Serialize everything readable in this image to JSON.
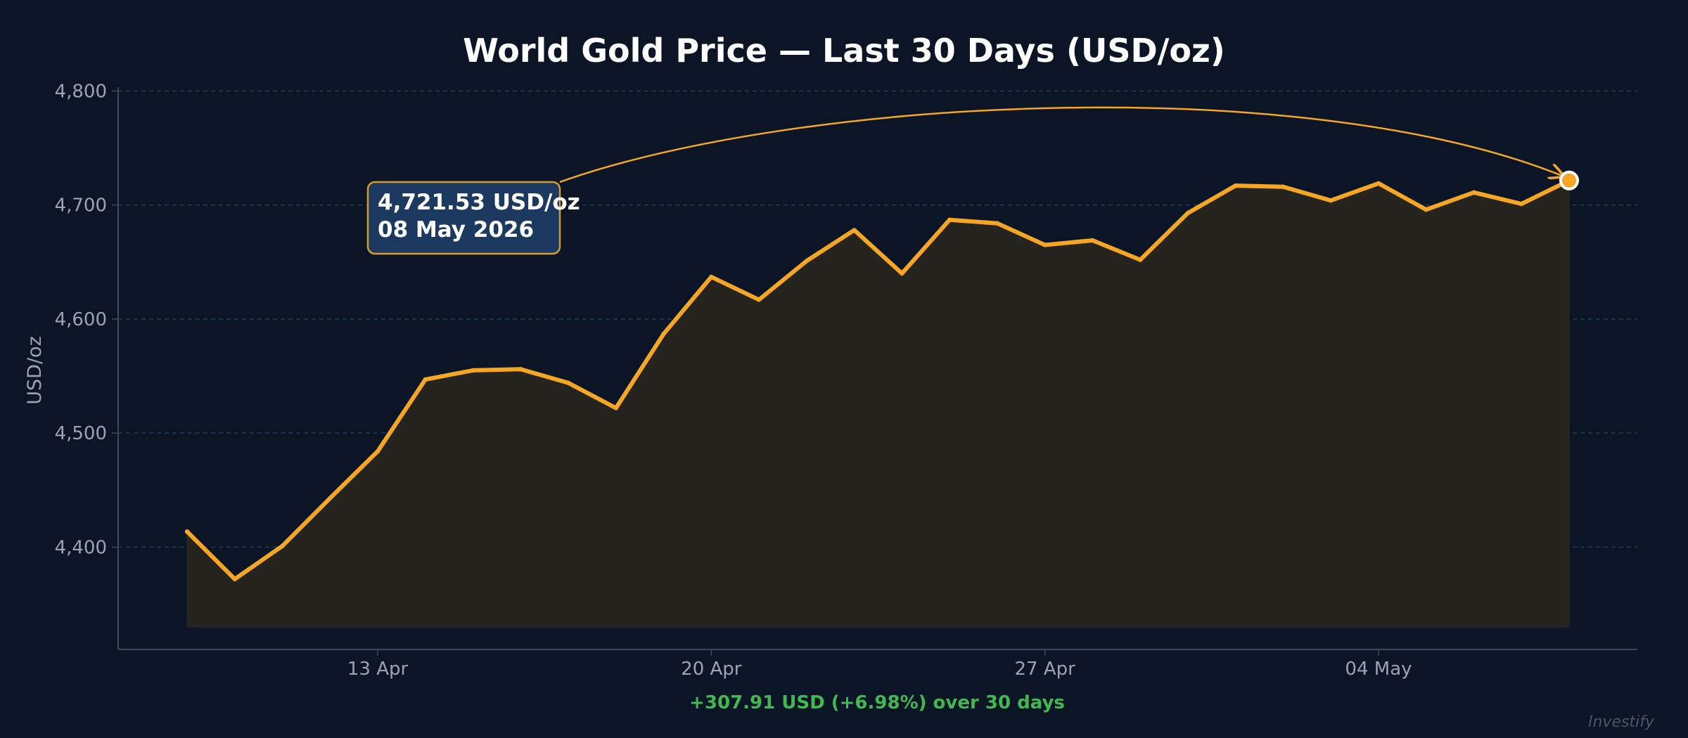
{
  "chart_data": {
    "type": "line",
    "title": "World Gold Price — Last 30 Days (USD/oz)",
    "xlabel": "",
    "ylabel": "USD/oz",
    "ylim": [
      4330,
      4820
    ],
    "y_ticks": [
      4400,
      4500,
      4600,
      4700,
      4800
    ],
    "y_tick_labels": [
      "4,400",
      "4,500",
      "4,600",
      "4,700",
      "4,800"
    ],
    "x_ticks": [
      "2026-04-13",
      "2026-04-20",
      "2026-04-27",
      "2026-05-04"
    ],
    "x_tick_labels": [
      "13 Apr",
      "20 Apr",
      "27 Apr",
      "04 May"
    ],
    "grid": true,
    "series": [
      {
        "x": [
          "2026-04-09",
          "2026-04-10",
          "2026-04-11",
          "2026-04-12",
          "2026-04-13",
          "2026-04-14",
          "2026-04-15",
          "2026-04-16",
          "2026-04-17",
          "2026-04-18",
          "2026-04-19",
          "2026-04-20",
          "2026-04-21",
          "2026-04-22",
          "2026-04-23",
          "2026-04-24",
          "2026-04-25",
          "2026-04-26",
          "2026-04-27",
          "2026-04-28",
          "2026-04-29",
          "2026-04-30",
          "2026-05-01",
          "2026-05-02",
          "2026-05-03",
          "2026-05-04",
          "2026-05-05",
          "2026-05-06",
          "2026-05-07",
          "2026-05-08"
        ],
        "values": [
          4413.62,
          4372,
          4401,
          4443,
          4484,
          4547,
          4555,
          4556,
          4544,
          4522,
          4587,
          4637,
          4617,
          4651,
          4678,
          4640,
          4687,
          4684,
          4665,
          4669,
          4652,
          4693,
          4717,
          4716,
          4704,
          4719,
          4696,
          4711,
          4701,
          4721.53
        ],
        "color": "#f5a623"
      }
    ],
    "annotation": {
      "x": "2026-05-08",
      "y": 4721.53,
      "price_text": "4,721.53 USD/oz",
      "date_text": "08 May 2026"
    },
    "summary_text": "+307.91 USD  (+6.98%)  over 30 days",
    "summary_color": "#3fb950",
    "watermark": "Investify",
    "colors": {
      "background": "#0b1526",
      "line": "#f5a623",
      "fill": "#26241f",
      "grid": "#1f3a5c",
      "axis": "#3a4a60",
      "callout_bg": "#1c3a60",
      "callout_border": "#d49b2e"
    }
  }
}
